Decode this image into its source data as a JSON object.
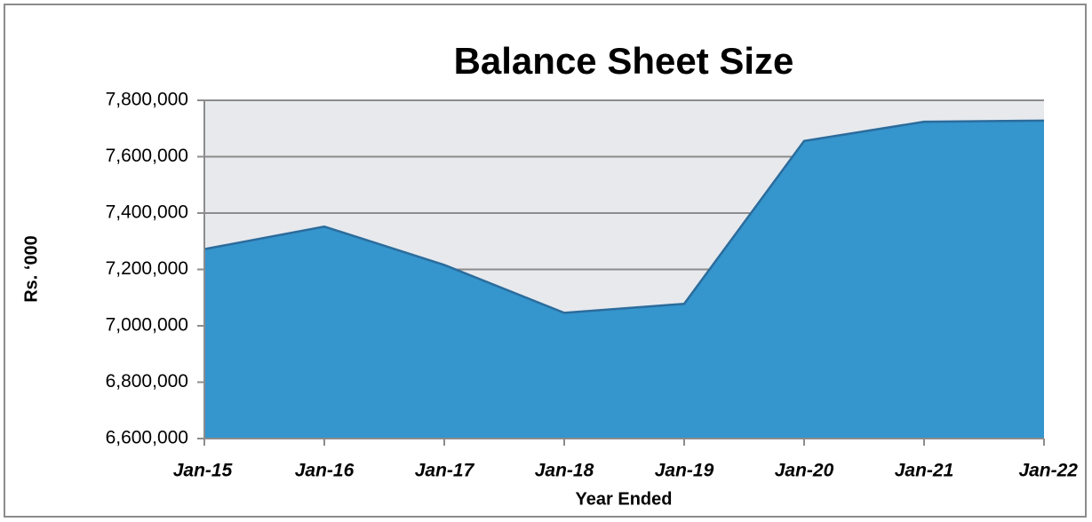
{
  "chart_data": {
    "type": "area",
    "title": "Balance Sheet Size",
    "x_label": "Year Ended",
    "y_label": "Rs. ‘000",
    "categories": [
      "Jan-15",
      "Jan-16",
      "Jan-17",
      "Jan-18",
      "Jan-19",
      "Jan-20",
      "Jan-21",
      "Jan-22"
    ],
    "values": [
      7272000,
      7352000,
      7216000,
      7046000,
      7078000,
      7656000,
      7724000,
      7728000
    ],
    "color": "#3595cd",
    "line_color": "#2b6c9c",
    "ylim": [
      6600000,
      7800000
    ],
    "yticks": [
      {
        "value": 6600000,
        "label": "6,600,000"
      },
      {
        "value": 6800000,
        "label": "6,800,000"
      },
      {
        "value": 7000000,
        "label": "7,000,000"
      },
      {
        "value": 7200000,
        "label": "7,200,000"
      },
      {
        "value": 7400000,
        "label": "7,400,000"
      },
      {
        "value": 7600000,
        "label": "7,600,000"
      },
      {
        "value": 7800000,
        "label": "7,800,000"
      }
    ],
    "grid": true
  }
}
